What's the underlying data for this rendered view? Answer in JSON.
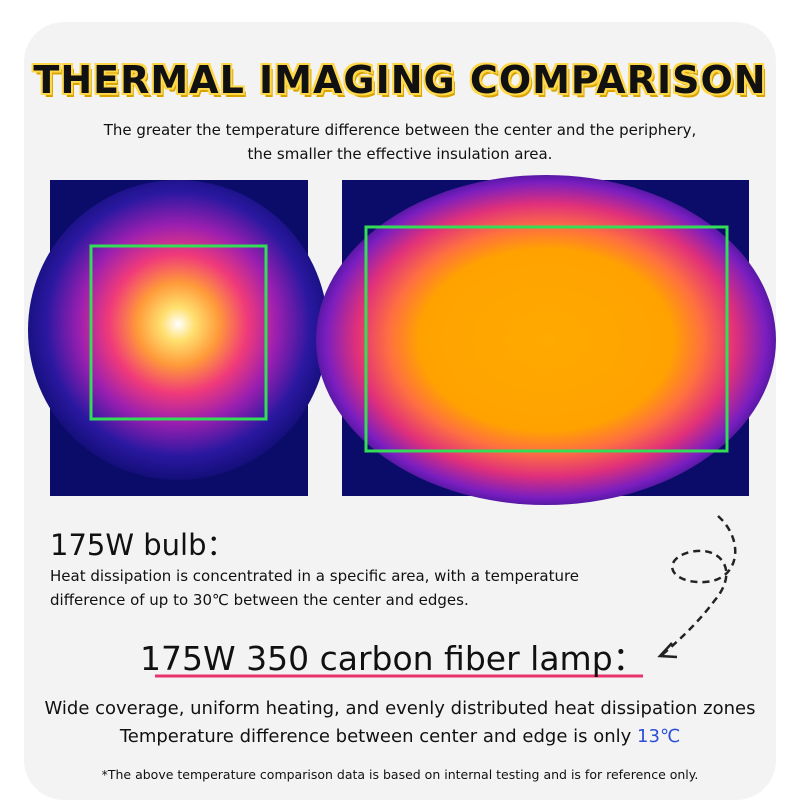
{
  "title": "THERMAL IMAGING COMPARISON",
  "subtitle": [
    "The greater the temperature difference between the center and the periphery,",
    "the smaller the effective insulation area."
  ],
  "bulb": {
    "heading": "175W bulb：",
    "description": [
      "Heat dissipation is concentrated in a specific area, with a temperature",
      "difference of up to 30℃ between the center and edges."
    ]
  },
  "lamp": {
    "heading": "175W 350 carbon fiber lamp：",
    "description": "Wide coverage, uniform heating, and evenly distributed heat dissipation zones",
    "difference_text": "Temperature difference between center and edge is only ",
    "difference_value": "13℃"
  },
  "footnote": "*The above temperature comparison data is based on internal testing and is for reference only."
}
